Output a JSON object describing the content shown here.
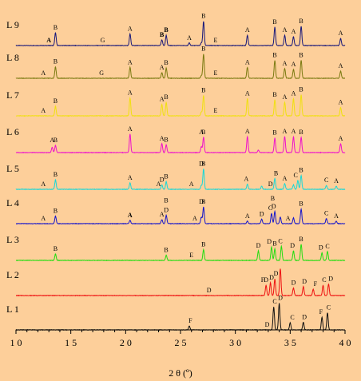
{
  "chart_data": {
    "type": "line",
    "xlabel": "2 θ (º)",
    "ylabel": "",
    "xlim": [
      10,
      40
    ],
    "grid": false,
    "legend": "none",
    "x_ticks": [
      10,
      15,
      20,
      25,
      30,
      35,
      40
    ],
    "x_tick_labels": [
      "1 0",
      "1 5",
      "2 0",
      "2 5",
      "3 0",
      "3 5",
      "4 0"
    ],
    "series": [
      {
        "name": "L 9",
        "color": "#16167a",
        "peaks": [
          [
            13.6,
            1.0
          ],
          [
            20.4,
            0.9
          ],
          [
            23.3,
            0.45
          ],
          [
            23.7,
            0.8
          ],
          [
            25.8,
            0.2
          ],
          [
            26.9,
            0.2
          ],
          [
            27.1,
            1.9
          ],
          [
            31.1,
            0.8
          ],
          [
            33.6,
            1.45
          ],
          [
            34.5,
            0.8
          ],
          [
            35.3,
            0.7
          ],
          [
            36.0,
            1.5
          ],
          [
            39.6,
            0.55
          ]
        ],
        "labels": [
          {
            "x": 13.0,
            "t": "A",
            "bold": true
          },
          {
            "x": 13.6,
            "t": "B"
          },
          {
            "x": 17.9,
            "t": "G"
          },
          {
            "x": 20.4,
            "t": "A"
          },
          {
            "x": 23.3,
            "t": "B",
            "bold": true
          },
          {
            "x": 23.7,
            "t": "B",
            "bold": true
          },
          {
            "x": 25.8,
            "t": "A"
          },
          {
            "x": 27.1,
            "t": "B"
          },
          {
            "x": 28.2,
            "t": "E"
          },
          {
            "x": 31.1,
            "t": "A"
          },
          {
            "x": 33.6,
            "t": "B"
          },
          {
            "x": 34.5,
            "t": "A"
          },
          {
            "x": 35.3,
            "t": "A"
          },
          {
            "x": 36.0,
            "t": "B"
          },
          {
            "x": 39.6,
            "t": "A"
          }
        ]
      },
      {
        "name": "L 8",
        "color": "#7a7a10",
        "peaks": [
          [
            13.6,
            0.9
          ],
          [
            20.4,
            0.85
          ],
          [
            23.3,
            0.45
          ],
          [
            23.7,
            0.8
          ],
          [
            26.9,
            0.2
          ],
          [
            27.1,
            1.9
          ],
          [
            31.1,
            0.85
          ],
          [
            33.6,
            1.4
          ],
          [
            34.5,
            0.75
          ],
          [
            35.3,
            0.7
          ],
          [
            36.0,
            1.4
          ],
          [
            39.6,
            0.55
          ]
        ],
        "labels": [
          {
            "x": 12.5,
            "t": "A"
          },
          {
            "x": 13.6,
            "t": "B"
          },
          {
            "x": 17.8,
            "t": "G"
          },
          {
            "x": 20.4,
            "t": "A"
          },
          {
            "x": 23.3,
            "t": "A"
          },
          {
            "x": 23.7,
            "t": "B"
          },
          {
            "x": 27.1,
            "t": "B"
          },
          {
            "x": 28.2,
            "t": "E"
          },
          {
            "x": 31.1,
            "t": "A"
          },
          {
            "x": 33.6,
            "t": "B"
          },
          {
            "x": 34.5,
            "t": "A"
          },
          {
            "x": 35.3,
            "t": "A"
          },
          {
            "x": 36.0,
            "t": "B"
          },
          {
            "x": 39.6,
            "t": "A"
          }
        ]
      },
      {
        "name": "L 7",
        "color": "#f0e010",
        "peaks": [
          [
            13.6,
            0.75
          ],
          [
            20.4,
            1.4
          ],
          [
            23.3,
            0.9
          ],
          [
            23.7,
            1.05
          ],
          [
            26.9,
            0.3
          ],
          [
            27.1,
            1.6
          ],
          [
            31.1,
            1.35
          ],
          [
            33.6,
            1.25
          ],
          [
            34.5,
            1.05
          ],
          [
            35.3,
            1.35
          ],
          [
            36.0,
            1.65
          ],
          [
            39.6,
            0.65
          ]
        ],
        "labels": [
          {
            "x": 12.5,
            "t": "A"
          },
          {
            "x": 13.6,
            "t": "B"
          },
          {
            "x": 20.4,
            "t": "A"
          },
          {
            "x": 23.3,
            "t": "A"
          },
          {
            "x": 23.7,
            "t": "B"
          },
          {
            "x": 27.1,
            "t": "B"
          },
          {
            "x": 28.2,
            "t": "E"
          },
          {
            "x": 31.1,
            "t": "A"
          },
          {
            "x": 33.6,
            "t": "B"
          },
          {
            "x": 34.5,
            "t": "A"
          },
          {
            "x": 35.3,
            "t": "A"
          },
          {
            "x": 36.0,
            "t": "B"
          },
          {
            "x": 39.6,
            "t": "A"
          }
        ]
      },
      {
        "name": "L 6",
        "color": "#ee10cc",
        "peaks": [
          [
            13.3,
            0.4
          ],
          [
            13.6,
            0.55
          ],
          [
            20.4,
            1.45
          ],
          [
            23.3,
            0.7
          ],
          [
            23.7,
            0.6
          ],
          [
            26.9,
            0.45
          ],
          [
            27.1,
            1.2
          ],
          [
            31.1,
            1.25
          ],
          [
            32.1,
            0.2
          ],
          [
            33.6,
            1.15
          ],
          [
            34.5,
            1.25
          ],
          [
            35.3,
            1.25
          ],
          [
            36.0,
            1.2
          ],
          [
            39.6,
            0.7
          ]
        ],
        "labels": [
          {
            "x": 13.3,
            "t": "A"
          },
          {
            "x": 13.6,
            "t": "B"
          },
          {
            "x": 20.4,
            "t": "A"
          },
          {
            "x": 23.3,
            "t": "A"
          },
          {
            "x": 23.7,
            "t": "B"
          },
          {
            "x": 26.9,
            "t": "A"
          },
          {
            "x": 27.1,
            "t": "B"
          },
          {
            "x": 31.1,
            "t": "A"
          },
          {
            "x": 33.6,
            "t": "B"
          },
          {
            "x": 34.5,
            "t": "A"
          },
          {
            "x": 35.3,
            "t": "A"
          },
          {
            "x": 36.0,
            "t": "B"
          },
          {
            "x": 39.6,
            "t": "A"
          }
        ]
      },
      {
        "name": "L 5",
        "color": "#18d8d8",
        "peaks": [
          [
            13.6,
            0.75
          ],
          [
            20.4,
            0.5
          ],
          [
            23.3,
            0.35
          ],
          [
            23.7,
            0.6
          ],
          [
            26.9,
            0.3
          ],
          [
            27.1,
            1.6
          ],
          [
            31.1,
            0.4
          ],
          [
            32.4,
            0.25
          ],
          [
            33.6,
            0.85
          ],
          [
            34.5,
            0.45
          ],
          [
            35.3,
            0.35
          ],
          [
            35.7,
            0.7
          ],
          [
            36.0,
            1.1
          ],
          [
            38.3,
            0.3
          ],
          [
            39.2,
            0.25
          ]
        ],
        "labels": [
          {
            "x": 12.5,
            "t": "A"
          },
          {
            "x": 13.6,
            "t": "B"
          },
          {
            "x": 20.4,
            "t": "A"
          },
          {
            "x": 23.0,
            "t": "A"
          },
          {
            "x": 23.3,
            "t": "D"
          },
          {
            "x": 23.7,
            "t": "B"
          },
          {
            "x": 26.0,
            "t": "A"
          },
          {
            "x": 26.9,
            "t": "D"
          },
          {
            "x": 27.1,
            "t": "B"
          },
          {
            "x": 31.0,
            "t": "A"
          },
          {
            "x": 33.2,
            "t": "D"
          },
          {
            "x": 33.7,
            "t": "B"
          },
          {
            "x": 34.5,
            "t": "A"
          },
          {
            "x": 35.5,
            "t": "C"
          },
          {
            "x": 36.0,
            "t": "B"
          },
          {
            "x": 38.3,
            "t": "C"
          },
          {
            "x": 39.2,
            "t": "A"
          }
        ]
      },
      {
        "name": "L 4",
        "color": "#1414cc",
        "peaks": [
          [
            13.6,
            0.6
          ],
          [
            20.4,
            0.25
          ],
          [
            23.3,
            0.3
          ],
          [
            23.7,
            0.65
          ],
          [
            26.9,
            0.5
          ],
          [
            27.1,
            1.3
          ],
          [
            31.1,
            0.2
          ],
          [
            32.4,
            0.35
          ],
          [
            33.3,
            0.8
          ],
          [
            33.6,
            0.95
          ],
          [
            34.1,
            0.5
          ],
          [
            35.3,
            0.45
          ],
          [
            36.0,
            1.15
          ],
          [
            38.3,
            0.4
          ],
          [
            39.2,
            0.2
          ]
        ],
        "labels": [
          {
            "x": 12.5,
            "t": "A"
          },
          {
            "x": 13.6,
            "t": "B"
          },
          {
            "x": 20.4,
            "t": "A",
            "bold": true
          },
          {
            "x": 23.3,
            "t": "A"
          },
          {
            "x": 23.7,
            "t": "D"
          },
          {
            "x": 23.7,
            "t": "B",
            "up": 12
          },
          {
            "x": 26.3,
            "t": "A"
          },
          {
            "x": 26.9,
            "t": "D"
          },
          {
            "x": 27.1,
            "t": "B"
          },
          {
            "x": 31.1,
            "t": "A"
          },
          {
            "x": 32.4,
            "t": "D"
          },
          {
            "x": 33.2,
            "t": "C"
          },
          {
            "x": 33.5,
            "t": "D"
          },
          {
            "x": 33.4,
            "t": "B",
            "up": 10
          },
          {
            "x": 34.8,
            "t": "A"
          },
          {
            "x": 36.0,
            "t": "B"
          },
          {
            "x": 38.3,
            "t": "C"
          },
          {
            "x": 39.2,
            "t": "A"
          }
        ]
      },
      {
        "name": "L 3",
        "color": "#22dd10",
        "peaks": [
          [
            13.6,
            0.5
          ],
          [
            23.7,
            0.4
          ],
          [
            27.1,
            0.85
          ],
          [
            32.1,
            0.75
          ],
          [
            33.3,
            1.05
          ],
          [
            33.6,
            0.9
          ],
          [
            34.2,
            1.1
          ],
          [
            35.3,
            0.75
          ],
          [
            36.0,
            1.25
          ],
          [
            37.9,
            0.6
          ],
          [
            38.4,
            0.7
          ]
        ],
        "labels": [
          {
            "x": 13.6,
            "t": "B"
          },
          {
            "x": 23.7,
            "t": "B"
          },
          {
            "x": 26.0,
            "t": "E"
          },
          {
            "x": 27.1,
            "t": "B"
          },
          {
            "x": 32.1,
            "t": "D"
          },
          {
            "x": 33.1,
            "t": "D"
          },
          {
            "x": 33.6,
            "t": "B"
          },
          {
            "x": 34.1,
            "t": "C"
          },
          {
            "x": 35.2,
            "t": "D"
          },
          {
            "x": 36.0,
            "t": "B"
          },
          {
            "x": 37.8,
            "t": "D"
          },
          {
            "x": 38.4,
            "t": "C"
          }
        ]
      },
      {
        "name": "L 2",
        "color": "#ee1010",
        "peaks": [
          [
            32.8,
            0.8
          ],
          [
            33.2,
            1.0
          ],
          [
            33.6,
            1.3
          ],
          [
            34.1,
            2.1
          ],
          [
            35.3,
            0.6
          ],
          [
            36.2,
            0.7
          ],
          [
            37.1,
            0.5
          ],
          [
            38.0,
            0.8
          ],
          [
            38.5,
            0.9
          ]
        ],
        "labels": [
          {
            "x": 27.6,
            "t": "D"
          },
          {
            "x": 32.5,
            "t": "F"
          },
          {
            "x": 32.8,
            "t": "D"
          },
          {
            "x": 33.3,
            "t": "D"
          },
          {
            "x": 33.7,
            "t": "D"
          },
          {
            "x": 35.3,
            "t": "D"
          },
          {
            "x": 36.3,
            "t": "D"
          },
          {
            "x": 37.3,
            "t": "F"
          },
          {
            "x": 38.1,
            "t": "C"
          },
          {
            "x": 38.7,
            "t": "D"
          }
        ]
      },
      {
        "name": "L 1",
        "color": "#111111",
        "peaks": [
          [
            25.8,
            0.3
          ],
          [
            33.5,
            1.8
          ],
          [
            34.0,
            2.1
          ],
          [
            35.0,
            0.55
          ],
          [
            36.2,
            0.6
          ],
          [
            37.9,
            1.0
          ],
          [
            38.4,
            1.35
          ]
        ],
        "labels": [
          {
            "x": 25.9,
            "t": "F"
          },
          {
            "x": 32.9,
            "t": "D"
          },
          {
            "x": 33.6,
            "t": "C"
          },
          {
            "x": 34.1,
            "t": "D"
          },
          {
            "x": 35.2,
            "t": "C"
          },
          {
            "x": 36.3,
            "t": "D"
          },
          {
            "x": 37.8,
            "t": "F"
          },
          {
            "x": 38.5,
            "t": "C"
          }
        ]
      }
    ]
  }
}
